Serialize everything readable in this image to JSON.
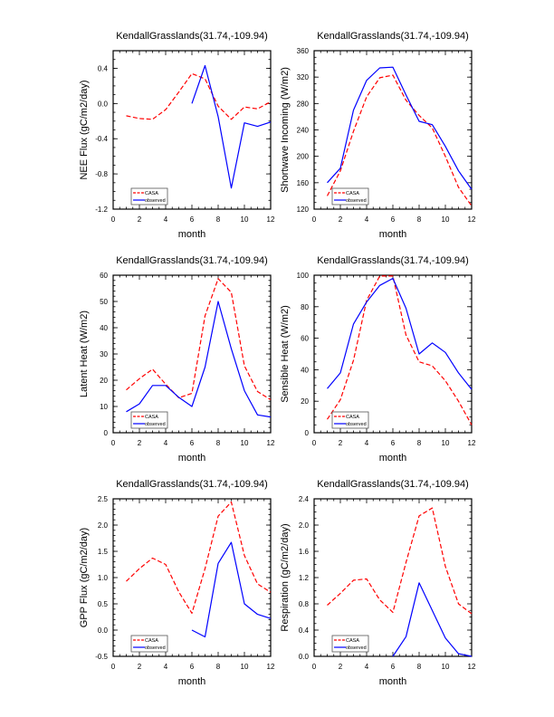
{
  "colors": {
    "CASA": "#ff0000",
    "observed": "#0000ff",
    "axis": "#000000"
  },
  "chart_data": [
    {
      "type": "line",
      "title": "KendallGrasslands(31.74,-109.94)",
      "xlabel": "month",
      "ylabel": "NEE Flux (gC/m2/day)",
      "xlim": [
        0,
        12
      ],
      "ylim": [
        -1.2,
        0.6
      ],
      "xticks": [
        0,
        2,
        4,
        6,
        8,
        10,
        12
      ],
      "yticks": [
        -1.2,
        -0.8,
        -0.4,
        0.0,
        0.4
      ],
      "ytick_labels": [
        "-1.2",
        "-0.8",
        "-0.4",
        "0.0",
        "0.4"
      ],
      "yminor": 0.1,
      "legend": "bottom-left",
      "series": [
        {
          "name": "CASA",
          "style": "dashed",
          "x": [
            1,
            2,
            3,
            4,
            5,
            6,
            7,
            8,
            9,
            10,
            11,
            12
          ],
          "values": [
            -0.14,
            -0.17,
            -0.18,
            -0.07,
            0.13,
            0.34,
            0.28,
            -0.03,
            -0.18,
            -0.04,
            -0.06,
            0.02
          ]
        },
        {
          "name": "observed",
          "style": "solid",
          "x": [
            6,
            7,
            8,
            9,
            10,
            11,
            12
          ],
          "values": [
            0.0,
            0.43,
            -0.15,
            -0.96,
            -0.22,
            -0.26,
            -0.21
          ]
        }
      ]
    },
    {
      "type": "line",
      "title": "KendallGrasslands(31.74,-109.94)",
      "xlabel": "month",
      "ylabel": "Shortwave Incoming (W/m2)",
      "xlim": [
        0,
        12
      ],
      "ylim": [
        120,
        360
      ],
      "xticks": [
        0,
        2,
        4,
        6,
        8,
        10,
        12
      ],
      "yticks": [
        120,
        160,
        200,
        240,
        280,
        320,
        360
      ],
      "ytick_labels": [
        "120",
        "160",
        "200",
        "240",
        "280",
        "320",
        "360"
      ],
      "yminor": 10,
      "legend": "bottom-left",
      "series": [
        {
          "name": "CASA",
          "style": "dashed",
          "x": [
            1,
            2,
            3,
            4,
            5,
            6,
            7,
            8,
            9,
            10,
            11,
            12
          ],
          "values": [
            140,
            178,
            238,
            290,
            319,
            323,
            285,
            262,
            243,
            200,
            153,
            125
          ]
        },
        {
          "name": "observed",
          "style": "solid",
          "x": [
            1,
            2,
            3,
            4,
            5,
            6,
            7,
            8,
            9,
            10,
            11,
            12
          ],
          "values": [
            160,
            182,
            270,
            315,
            334,
            335,
            293,
            253,
            248,
            215,
            178,
            150
          ]
        }
      ]
    },
    {
      "type": "line",
      "title": "KendallGrasslands(31.74,-109.94)",
      "xlabel": "month",
      "ylabel": "Latent Heat (W/m2)",
      "xlim": [
        0,
        12
      ],
      "ylim": [
        0,
        60
      ],
      "xticks": [
        0,
        2,
        4,
        6,
        8,
        10,
        12
      ],
      "yticks": [
        0,
        10,
        20,
        30,
        40,
        50,
        60
      ],
      "ytick_labels": [
        "0",
        "10",
        "20",
        "30",
        "40",
        "50",
        "60"
      ],
      "yminor": 2,
      "legend": "bottom-left",
      "series": [
        {
          "name": "CASA",
          "style": "dashed",
          "x": [
            1,
            2,
            3,
            4,
            5,
            6,
            7,
            8,
            9,
            10,
            11,
            12
          ],
          "values": [
            16.3,
            20.6,
            24.2,
            18.5,
            13.3,
            15,
            44.5,
            58.7,
            53.5,
            25.5,
            15.7,
            12.6
          ]
        },
        {
          "name": "observed",
          "style": "solid",
          "x": [
            1,
            2,
            3,
            4,
            5,
            6,
            7,
            8,
            9,
            10,
            11,
            12
          ],
          "values": [
            8,
            11,
            18,
            18,
            13.5,
            10,
            25,
            50,
            32,
            16,
            6.8,
            6
          ]
        }
      ]
    },
    {
      "type": "line",
      "title": "KendallGrasslands(31.74,-109.94)",
      "xlabel": "month",
      "ylabel": "Sensible Heat (W/m2)",
      "xlim": [
        0,
        12
      ],
      "ylim": [
        0,
        100
      ],
      "xticks": [
        0,
        2,
        4,
        6,
        8,
        10,
        12
      ],
      "yticks": [
        0,
        20,
        40,
        60,
        80,
        100
      ],
      "ytick_labels": [
        "0",
        "20",
        "40",
        "60",
        "80",
        "100"
      ],
      "yminor": 5,
      "legend": "bottom-left",
      "series": [
        {
          "name": "CASA",
          "style": "dashed",
          "x": [
            1,
            2,
            3,
            4,
            5,
            6,
            7,
            8,
            9,
            10,
            11,
            12
          ],
          "values": [
            8.5,
            21,
            46,
            84,
            99.5,
            99.5,
            62,
            45,
            42.5,
            33,
            20,
            5
          ]
        },
        {
          "name": "observed",
          "style": "solid",
          "x": [
            1,
            2,
            3,
            4,
            5,
            6,
            7,
            8,
            9,
            10,
            11,
            12
          ],
          "values": [
            28,
            38,
            69,
            83,
            93.5,
            98,
            79,
            50,
            57,
            51,
            38,
            27.5
          ]
        }
      ]
    },
    {
      "type": "line",
      "title": "KendallGrasslands(31.74,-109.94)",
      "xlabel": "month",
      "ylabel": "GPP Flux (gC/m2/day)",
      "xlim": [
        0,
        12
      ],
      "ylim": [
        -0.5,
        2.5
      ],
      "xticks": [
        0,
        2,
        4,
        6,
        8,
        10,
        12
      ],
      "yticks": [
        -0.5,
        0,
        0.5,
        1,
        1.5,
        2,
        2.5
      ],
      "ytick_labels": [
        "-0.5",
        "0.0",
        "0.5",
        "1.0",
        "1.5",
        "2.0",
        "2.5"
      ],
      "yminor": 0.1,
      "legend": "bottom-left",
      "series": [
        {
          "name": "CASA",
          "style": "dashed",
          "x": [
            1,
            2,
            3,
            4,
            5,
            6,
            7,
            8,
            9,
            10,
            11,
            12
          ],
          "values": [
            0.93,
            1.17,
            1.37,
            1.25,
            0.73,
            0.32,
            1.17,
            2.17,
            2.44,
            1.42,
            0.88,
            0.72
          ]
        },
        {
          "name": "observed",
          "style": "solid",
          "x": [
            6,
            7,
            8,
            9,
            10,
            11,
            12
          ],
          "values": [
            0.0,
            -0.13,
            1.27,
            1.67,
            0.5,
            0.3,
            0.22
          ]
        }
      ]
    },
    {
      "type": "line",
      "title": "KendallGrasslands(31.74,-109.94)",
      "xlabel": "month",
      "ylabel": "Respiration (gC/m2/day)",
      "xlim": [
        0,
        12
      ],
      "ylim": [
        0,
        2.4
      ],
      "xticks": [
        0,
        2,
        4,
        6,
        8,
        10,
        12
      ],
      "yticks": [
        0,
        0.4,
        0.8,
        1.2,
        1.6,
        2.0,
        2.4
      ],
      "ytick_labels": [
        "0.0",
        "0.4",
        "0.8",
        "1.2",
        "1.6",
        "2.0",
        "2.4"
      ],
      "yminor": 0.1,
      "legend": "bottom-left",
      "series": [
        {
          "name": "CASA",
          "style": "dashed",
          "x": [
            1,
            2,
            3,
            4,
            5,
            6,
            7,
            8,
            9,
            10,
            11,
            12
          ],
          "values": [
            0.78,
            0.96,
            1.16,
            1.18,
            0.86,
            0.67,
            1.43,
            2.14,
            2.26,
            1.37,
            0.8,
            0.65
          ]
        },
        {
          "name": "observed",
          "style": "solid",
          "x": [
            6,
            7,
            8,
            9,
            10,
            11,
            12
          ],
          "values": [
            0.0,
            0.3,
            1.12,
            0.7,
            0.28,
            0.04,
            0.0
          ]
        }
      ]
    }
  ]
}
